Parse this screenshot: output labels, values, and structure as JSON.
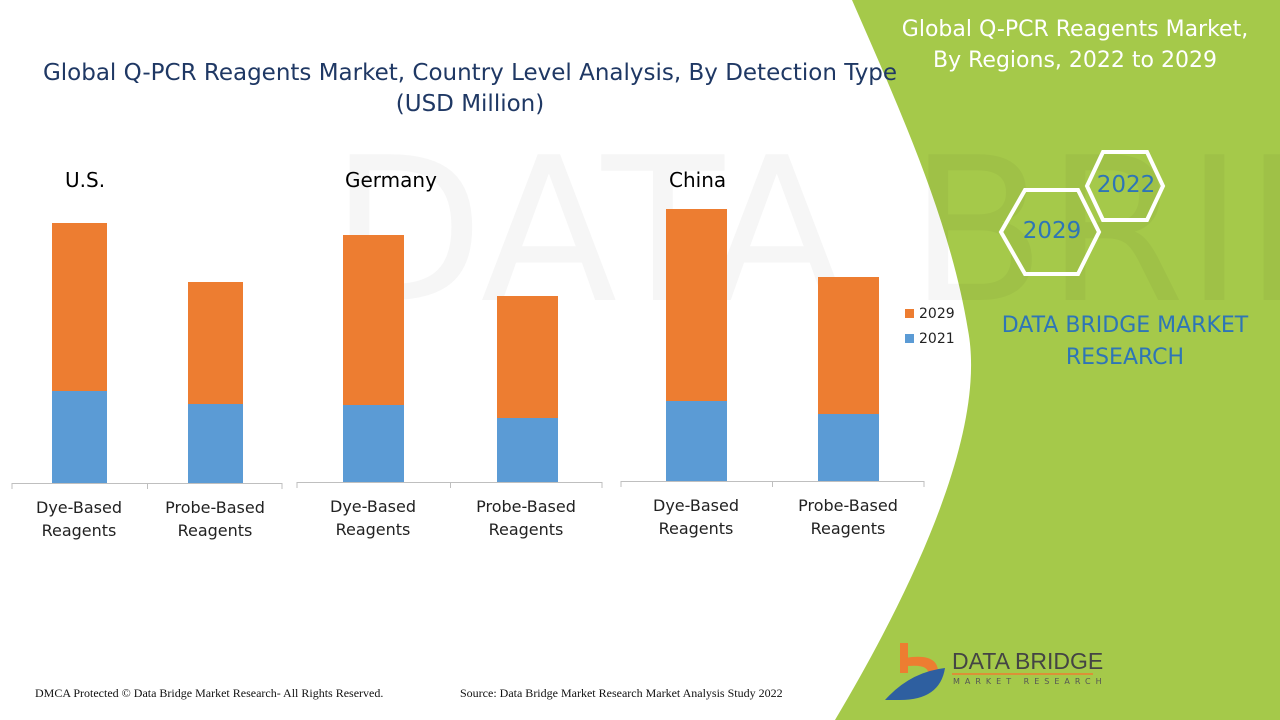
{
  "title": "Global Q-PCR Reagents Market, Country Level Analysis, By Detection Type (USD Million)",
  "right_panel": {
    "title": "Global Q-PCR Reagents Market, By Regions, 2022 to 2029",
    "hex_years": [
      "2022",
      "2029"
    ],
    "brand": "DATA BRIDGE MARKET RESEARCH",
    "logo_title": "DATA BRIDGE",
    "logo_sub": "MARKET RESEARCH"
  },
  "footer": {
    "dmca": "DMCA Protected © Data Bridge Market Research- All Rights Reserved.",
    "source": "Source: Data Bridge Market Research Market Analysis Study 2022"
  },
  "colors": {
    "2029": "#ed7d31",
    "2021": "#5b9bd5",
    "panel_green": "#a5c94a",
    "title_blue": "#1f3864"
  },
  "chart_data": [
    {
      "type": "bar",
      "stacked": true,
      "title": "U.S.",
      "categories": [
        "Dye-Based Reagents",
        "Probe-Based Reagents"
      ],
      "series": [
        {
          "name": "2021",
          "values": [
            92,
            79
          ]
        },
        {
          "name": "2029",
          "values": [
            168,
            122
          ]
        }
      ],
      "axis_values_shown": false
    },
    {
      "type": "bar",
      "stacked": true,
      "title": "Germany",
      "categories": [
        "Dye-Based Reagents",
        "Probe-Based Reagents"
      ],
      "series": [
        {
          "name": "2021",
          "values": [
            77,
            64
          ]
        },
        {
          "name": "2029",
          "values": [
            170,
            122
          ]
        }
      ],
      "axis_values_shown": false
    },
    {
      "type": "bar",
      "stacked": true,
      "title": "China",
      "categories": [
        "Dye-Based Reagents",
        "Probe-Based Reagents"
      ],
      "series": [
        {
          "name": "2021",
          "values": [
            80,
            67
          ]
        },
        {
          "name": "2029",
          "values": [
            192,
            137
          ]
        }
      ],
      "axis_values_shown": false
    }
  ],
  "legend": [
    "2029",
    "2021"
  ]
}
